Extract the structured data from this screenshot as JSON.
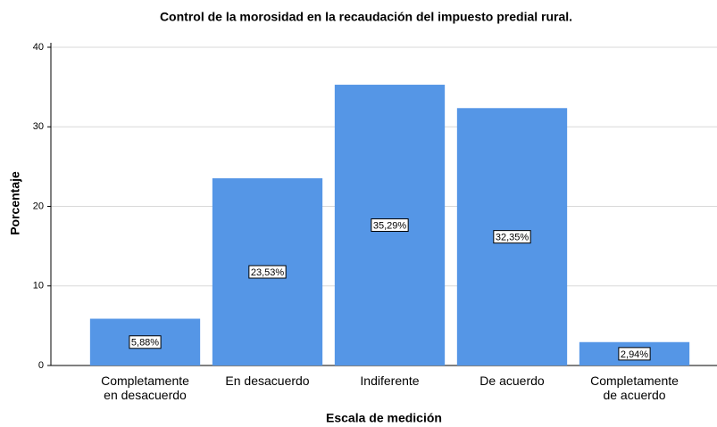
{
  "chart_data": {
    "type": "bar",
    "title": "Control de  la morosidad en la recaudación del impuesto predial rural.",
    "x_label": "Escala de medición",
    "y_label": "Porcentaje",
    "categories": [
      "Completamente\nen desacuerdo",
      "En desacuerdo",
      "Indiferente",
      "De acuerdo",
      "Completamente\nde acuerdo"
    ],
    "values": [
      5.88,
      23.53,
      35.29,
      32.35,
      2.94
    ],
    "value_labels": [
      "5,88%",
      "23,53%",
      "35,29%",
      "32,35%",
      "2,94%"
    ],
    "color": "#5596e6",
    "ylim": [
      0,
      40
    ],
    "yticks": [
      0,
      10,
      20,
      30,
      40
    ],
    "grid": true
  }
}
